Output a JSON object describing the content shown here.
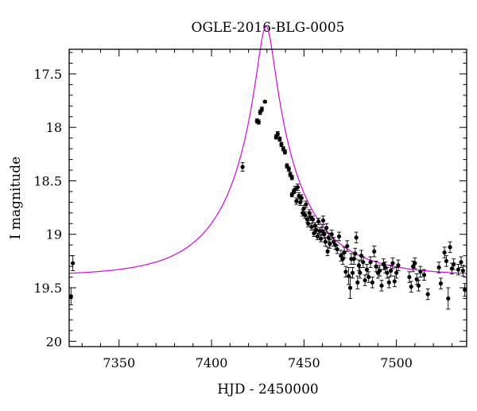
{
  "chart_data": {
    "type": "scatter",
    "title": "OGLE-2016-BLG-0005",
    "xlabel": "HJD - 2450000",
    "ylabel": "I magnitude",
    "xlim": [
      7323,
      7538
    ],
    "ylim": [
      20.05,
      17.27
    ],
    "y_inverted": true,
    "xticks": [
      7350,
      7400,
      7450,
      7500
    ],
    "xtick_labels": [
      "7350",
      "7400",
      "7450",
      "7500"
    ],
    "yticks": [
      17.5,
      18,
      18.5,
      19,
      19.5,
      20
    ],
    "ytick_labels": [
      "17.5",
      "18",
      "18.5",
      "19",
      "19.5",
      "20"
    ],
    "x_minor_step": 10,
    "y_minor_step": 0.1,
    "grid": false,
    "model": {
      "name": "model",
      "color": "#e000e0",
      "t0": 7429.5,
      "u0": 0.112,
      "tE": 40.0,
      "Ibase": 19.39,
      "fs": 0.95
    },
    "series": [
      {
        "type": "scatter",
        "color": "#000000",
        "points": [
          [
            7324.0,
            19.58,
            0.08
          ],
          [
            7325.0,
            19.27,
            0.07
          ],
          [
            7416.8,
            18.37,
            0.04
          ],
          [
            7424.6,
            17.94,
            0.02
          ],
          [
            7425.5,
            17.95,
            0.02
          ],
          [
            7426.3,
            17.86,
            0.02
          ],
          [
            7427.2,
            17.83,
            0.02
          ],
          [
            7428.9,
            17.76,
            0.01
          ],
          [
            7434.9,
            18.09,
            0.02
          ],
          [
            7435.8,
            18.06,
            0.02
          ],
          [
            7436.9,
            18.11,
            0.02
          ],
          [
            7437.8,
            18.16,
            0.02
          ],
          [
            7438.8,
            18.2,
            0.02
          ],
          [
            7439.7,
            18.23,
            0.02
          ],
          [
            7440.8,
            18.36,
            0.02
          ],
          [
            7441.8,
            18.39,
            0.02
          ],
          [
            7442.6,
            18.44,
            0.02
          ],
          [
            7443.5,
            18.47,
            0.02
          ],
          [
            7443.5,
            18.63,
            0.02
          ],
          [
            7444.5,
            18.6,
            0.02
          ],
          [
            7445.2,
            18.58,
            0.03
          ],
          [
            7445.9,
            18.69,
            0.03
          ],
          [
            7446.6,
            18.56,
            0.03
          ],
          [
            7447.3,
            18.64,
            0.03
          ],
          [
            7448.0,
            18.7,
            0.03
          ],
          [
            7448.7,
            18.66,
            0.03
          ],
          [
            7449.3,
            18.8,
            0.03
          ],
          [
            7449.9,
            18.76,
            0.03
          ],
          [
            7450.6,
            18.82,
            0.03
          ],
          [
            7451.1,
            18.72,
            0.03
          ],
          [
            7451.7,
            18.86,
            0.03
          ],
          [
            7452.3,
            18.9,
            0.03
          ],
          [
            7452.9,
            18.8,
            0.03
          ],
          [
            7453.5,
            18.84,
            0.03
          ],
          [
            7454.1,
            18.93,
            0.03
          ],
          [
            7454.8,
            18.86,
            0.03
          ],
          [
            7455.4,
            18.99,
            0.03
          ],
          [
            7456.0,
            18.92,
            0.03
          ],
          [
            7456.7,
            18.96,
            0.03
          ],
          [
            7457.3,
            19.02,
            0.03
          ],
          [
            7457.9,
            18.88,
            0.03
          ],
          [
            7458.6,
            18.97,
            0.03
          ],
          [
            7459.2,
            19.04,
            0.03
          ],
          [
            7459.8,
            18.97,
            0.04
          ],
          [
            7460.4,
            18.87,
            0.04
          ],
          [
            7461.0,
            19.0,
            0.04
          ],
          [
            7461.6,
            19.07,
            0.04
          ],
          [
            7462.2,
            18.94,
            0.04
          ],
          [
            7462.8,
            19.16,
            0.04
          ],
          [
            7463.3,
            19.03,
            0.04
          ],
          [
            7464.0,
            19.09,
            0.04
          ],
          [
            7465.0,
            19.0,
            0.04
          ],
          [
            7466.0,
            19.07,
            0.04
          ],
          [
            7467.0,
            19.1,
            0.04
          ],
          [
            7468.0,
            19.14,
            0.04
          ],
          [
            7469.0,
            19.02,
            0.04
          ],
          [
            7470.0,
            19.2,
            0.05
          ],
          [
            7471.0,
            19.23,
            0.05
          ],
          [
            7471.8,
            19.17,
            0.05
          ],
          [
            7472.6,
            19.35,
            0.05
          ],
          [
            7473.4,
            19.11,
            0.05
          ],
          [
            7474.2,
            19.39,
            0.08
          ],
          [
            7475.0,
            19.5,
            0.1
          ],
          [
            7475.6,
            19.23,
            0.05
          ],
          [
            7476.3,
            19.36,
            0.05
          ],
          [
            7477.0,
            19.23,
            0.05
          ],
          [
            7477.7,
            19.18,
            0.05
          ],
          [
            7478.3,
            19.03,
            0.05
          ],
          [
            7479.0,
            19.45,
            0.06
          ],
          [
            7479.7,
            19.29,
            0.05
          ],
          [
            7480.3,
            19.36,
            0.05
          ],
          [
            7481.0,
            19.2,
            0.05
          ],
          [
            7482.0,
            19.26,
            0.05
          ],
          [
            7483.0,
            19.43,
            0.05
          ],
          [
            7484.0,
            19.33,
            0.05
          ],
          [
            7485.0,
            19.4,
            0.05
          ],
          [
            7486.0,
            19.26,
            0.05
          ],
          [
            7487.0,
            19.45,
            0.05
          ],
          [
            7488.0,
            19.16,
            0.05
          ],
          [
            7489.0,
            19.3,
            0.05
          ],
          [
            7490.0,
            19.36,
            0.05
          ],
          [
            7491.0,
            19.34,
            0.05
          ],
          [
            7492.0,
            19.48,
            0.05
          ],
          [
            7493.0,
            19.28,
            0.05
          ],
          [
            7494.0,
            19.31,
            0.05
          ],
          [
            7495.0,
            19.36,
            0.05
          ],
          [
            7496.0,
            19.45,
            0.05
          ],
          [
            7497.0,
            19.34,
            0.05
          ],
          [
            7498.0,
            19.27,
            0.05
          ],
          [
            7499.0,
            19.44,
            0.05
          ],
          [
            7500.0,
            19.36,
            0.05
          ],
          [
            7501.0,
            19.29,
            0.05
          ],
          [
            7507.0,
            19.4,
            0.05
          ],
          [
            7508.0,
            19.49,
            0.05
          ],
          [
            7509.0,
            19.3,
            0.05
          ],
          [
            7510.0,
            19.27,
            0.05
          ],
          [
            7511.0,
            19.42,
            0.05
          ],
          [
            7512.0,
            19.48,
            0.05
          ],
          [
            7513.0,
            19.35,
            0.05
          ],
          [
            7515.0,
            19.38,
            0.05
          ],
          [
            7517.0,
            19.56,
            0.05
          ],
          [
            7523.0,
            19.31,
            0.05
          ],
          [
            7524.0,
            19.46,
            0.05
          ],
          [
            7526.0,
            19.17,
            0.05
          ],
          [
            7527.0,
            19.25,
            0.05
          ],
          [
            7528.0,
            19.6,
            0.1
          ],
          [
            7529.0,
            19.12,
            0.05
          ],
          [
            7530.0,
            19.32,
            0.05
          ],
          [
            7531.0,
            19.28,
            0.05
          ],
          [
            7533.5,
            19.33,
            0.05
          ],
          [
            7535.0,
            19.26,
            0.05
          ],
          [
            7536.0,
            19.34,
            0.05
          ],
          [
            7537.0,
            19.52,
            0.06
          ]
        ]
      }
    ]
  }
}
